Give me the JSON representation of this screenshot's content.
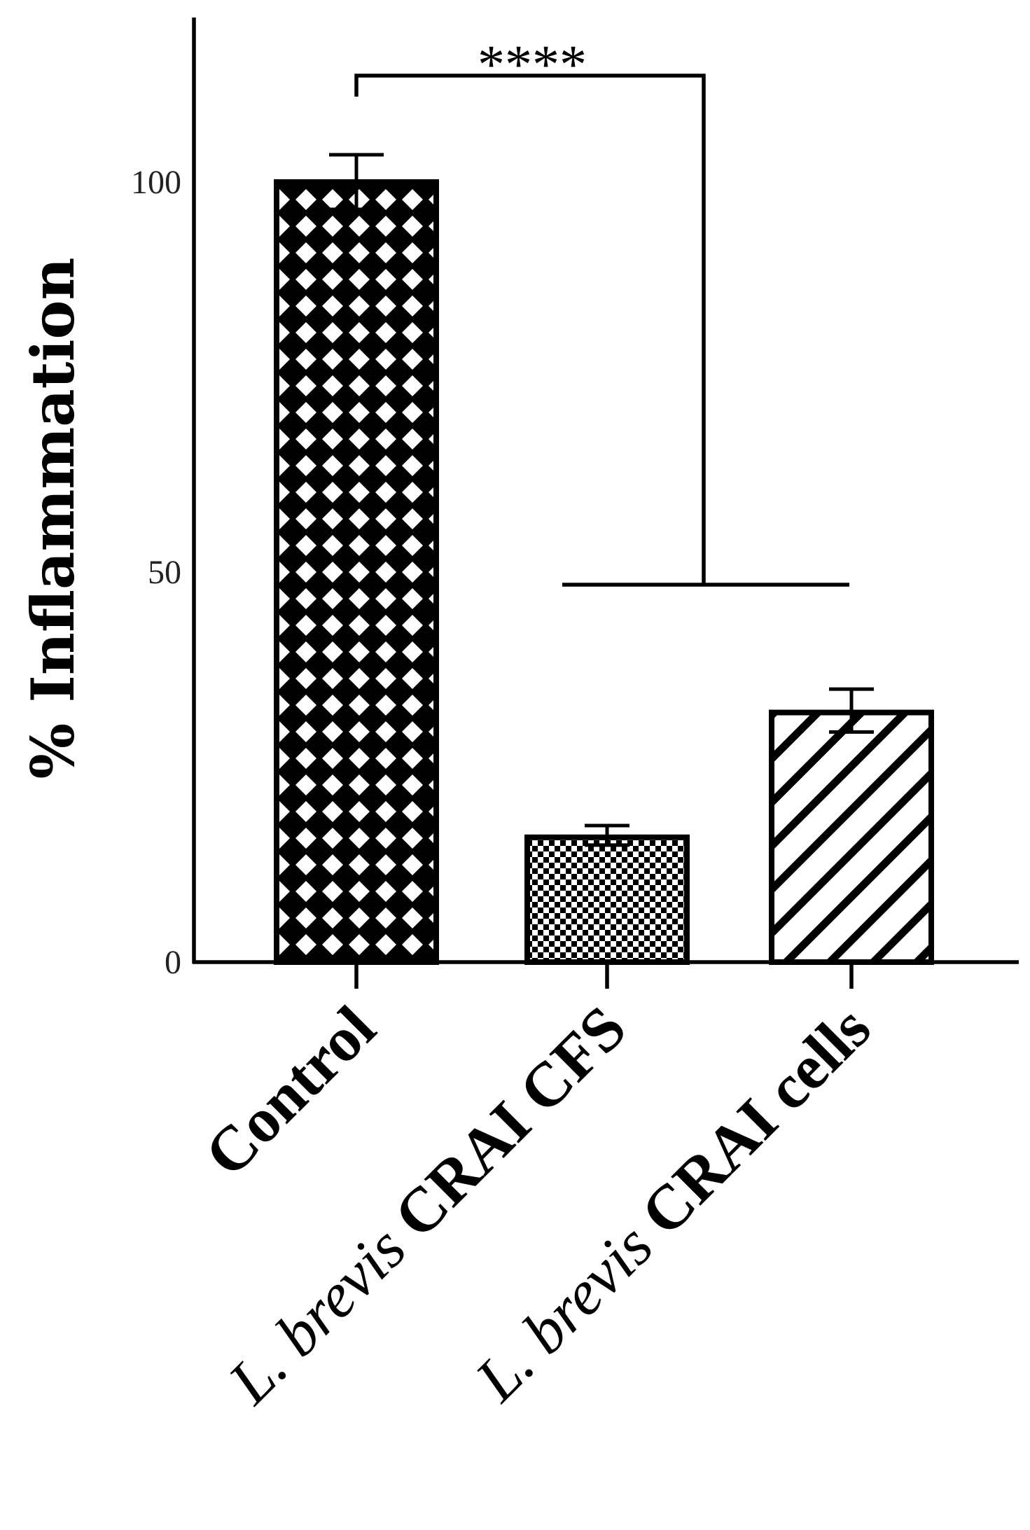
{
  "chart_data": {
    "type": "bar",
    "ylabel": "% Inflammation",
    "xlabel": "",
    "ylim": [
      0,
      120
    ],
    "yticks": [
      "0",
      "50",
      "100"
    ],
    "grid": false,
    "categories": [
      {
        "italic": "L. brevis",
        "plain": "",
        "full": "Control",
        "label": "Control"
      },
      {
        "italic": "L. brevis",
        "plain": "CRAI CFS",
        "full": "L. brevis CRAI CFS",
        "label": "L. brevis CRAI CFS"
      },
      {
        "italic": "L. brevis",
        "plain": "CRAI cells",
        "full": "L. brevis CRAI cells",
        "label": "L. brevis CRAI cells"
      }
    ],
    "values": [
      100,
      16,
      32
    ],
    "error_upper": [
      3.5,
      1.5,
      3.0
    ],
    "error_lower": [
      3.5,
      1.0,
      2.5
    ],
    "fill_patterns": [
      "crosshatch",
      "checker",
      "diagonal-stripes"
    ],
    "significance": {
      "text": "****",
      "from": "Control",
      "to": [
        "L. brevis CRAI CFS",
        "L. brevis CRAI cells"
      ]
    }
  }
}
